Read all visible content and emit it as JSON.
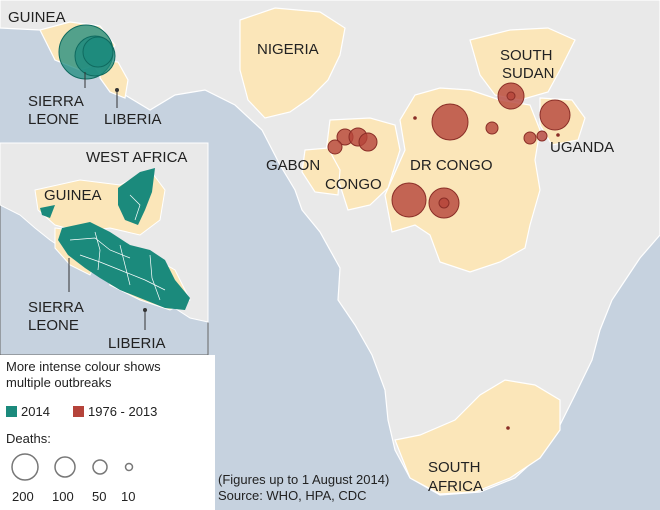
{
  "colors": {
    "water": "#c6d2df",
    "land_other": "#e9e9e9",
    "land_highlight": "#fbe6b9",
    "border": "#ffffff",
    "outbreak_2014": "#1b8a7c",
    "outbreak_past": "#b5433a"
  },
  "labels": {
    "guinea_top": "GUINEA",
    "sierra_leone_top_1": "SIERRA",
    "sierra_leone_top_2": "LEONE",
    "liberia_top": "LIBERIA",
    "nigeria": "NIGERIA",
    "south_sudan_1": "SOUTH",
    "south_sudan_2": "SUDAN",
    "uganda": "UGANDA",
    "gabon": "GABON",
    "congo": "CONGO",
    "dr_congo": "DR CONGO",
    "south_africa_1": "SOUTH",
    "south_africa_2": "AFRICA"
  },
  "inset": {
    "title": "WEST AFRICA",
    "guinea": "GUINEA",
    "sierra_leone_1": "SIERRA",
    "sierra_leone_2": "LEONE",
    "liberia": "LIBERIA"
  },
  "legend": {
    "note_1": "More intense colour shows",
    "note_2": "multiple outbreaks",
    "key_2014": "2014",
    "key_past": "1976 - 2013",
    "deaths_title": "Deaths:",
    "sizes": [
      "200",
      "100",
      "50",
      "10"
    ]
  },
  "footnote": {
    "line1": "(Figures up to 1 August 2014)",
    "line2": "Source: WHO, HPA, CDC"
  }
}
